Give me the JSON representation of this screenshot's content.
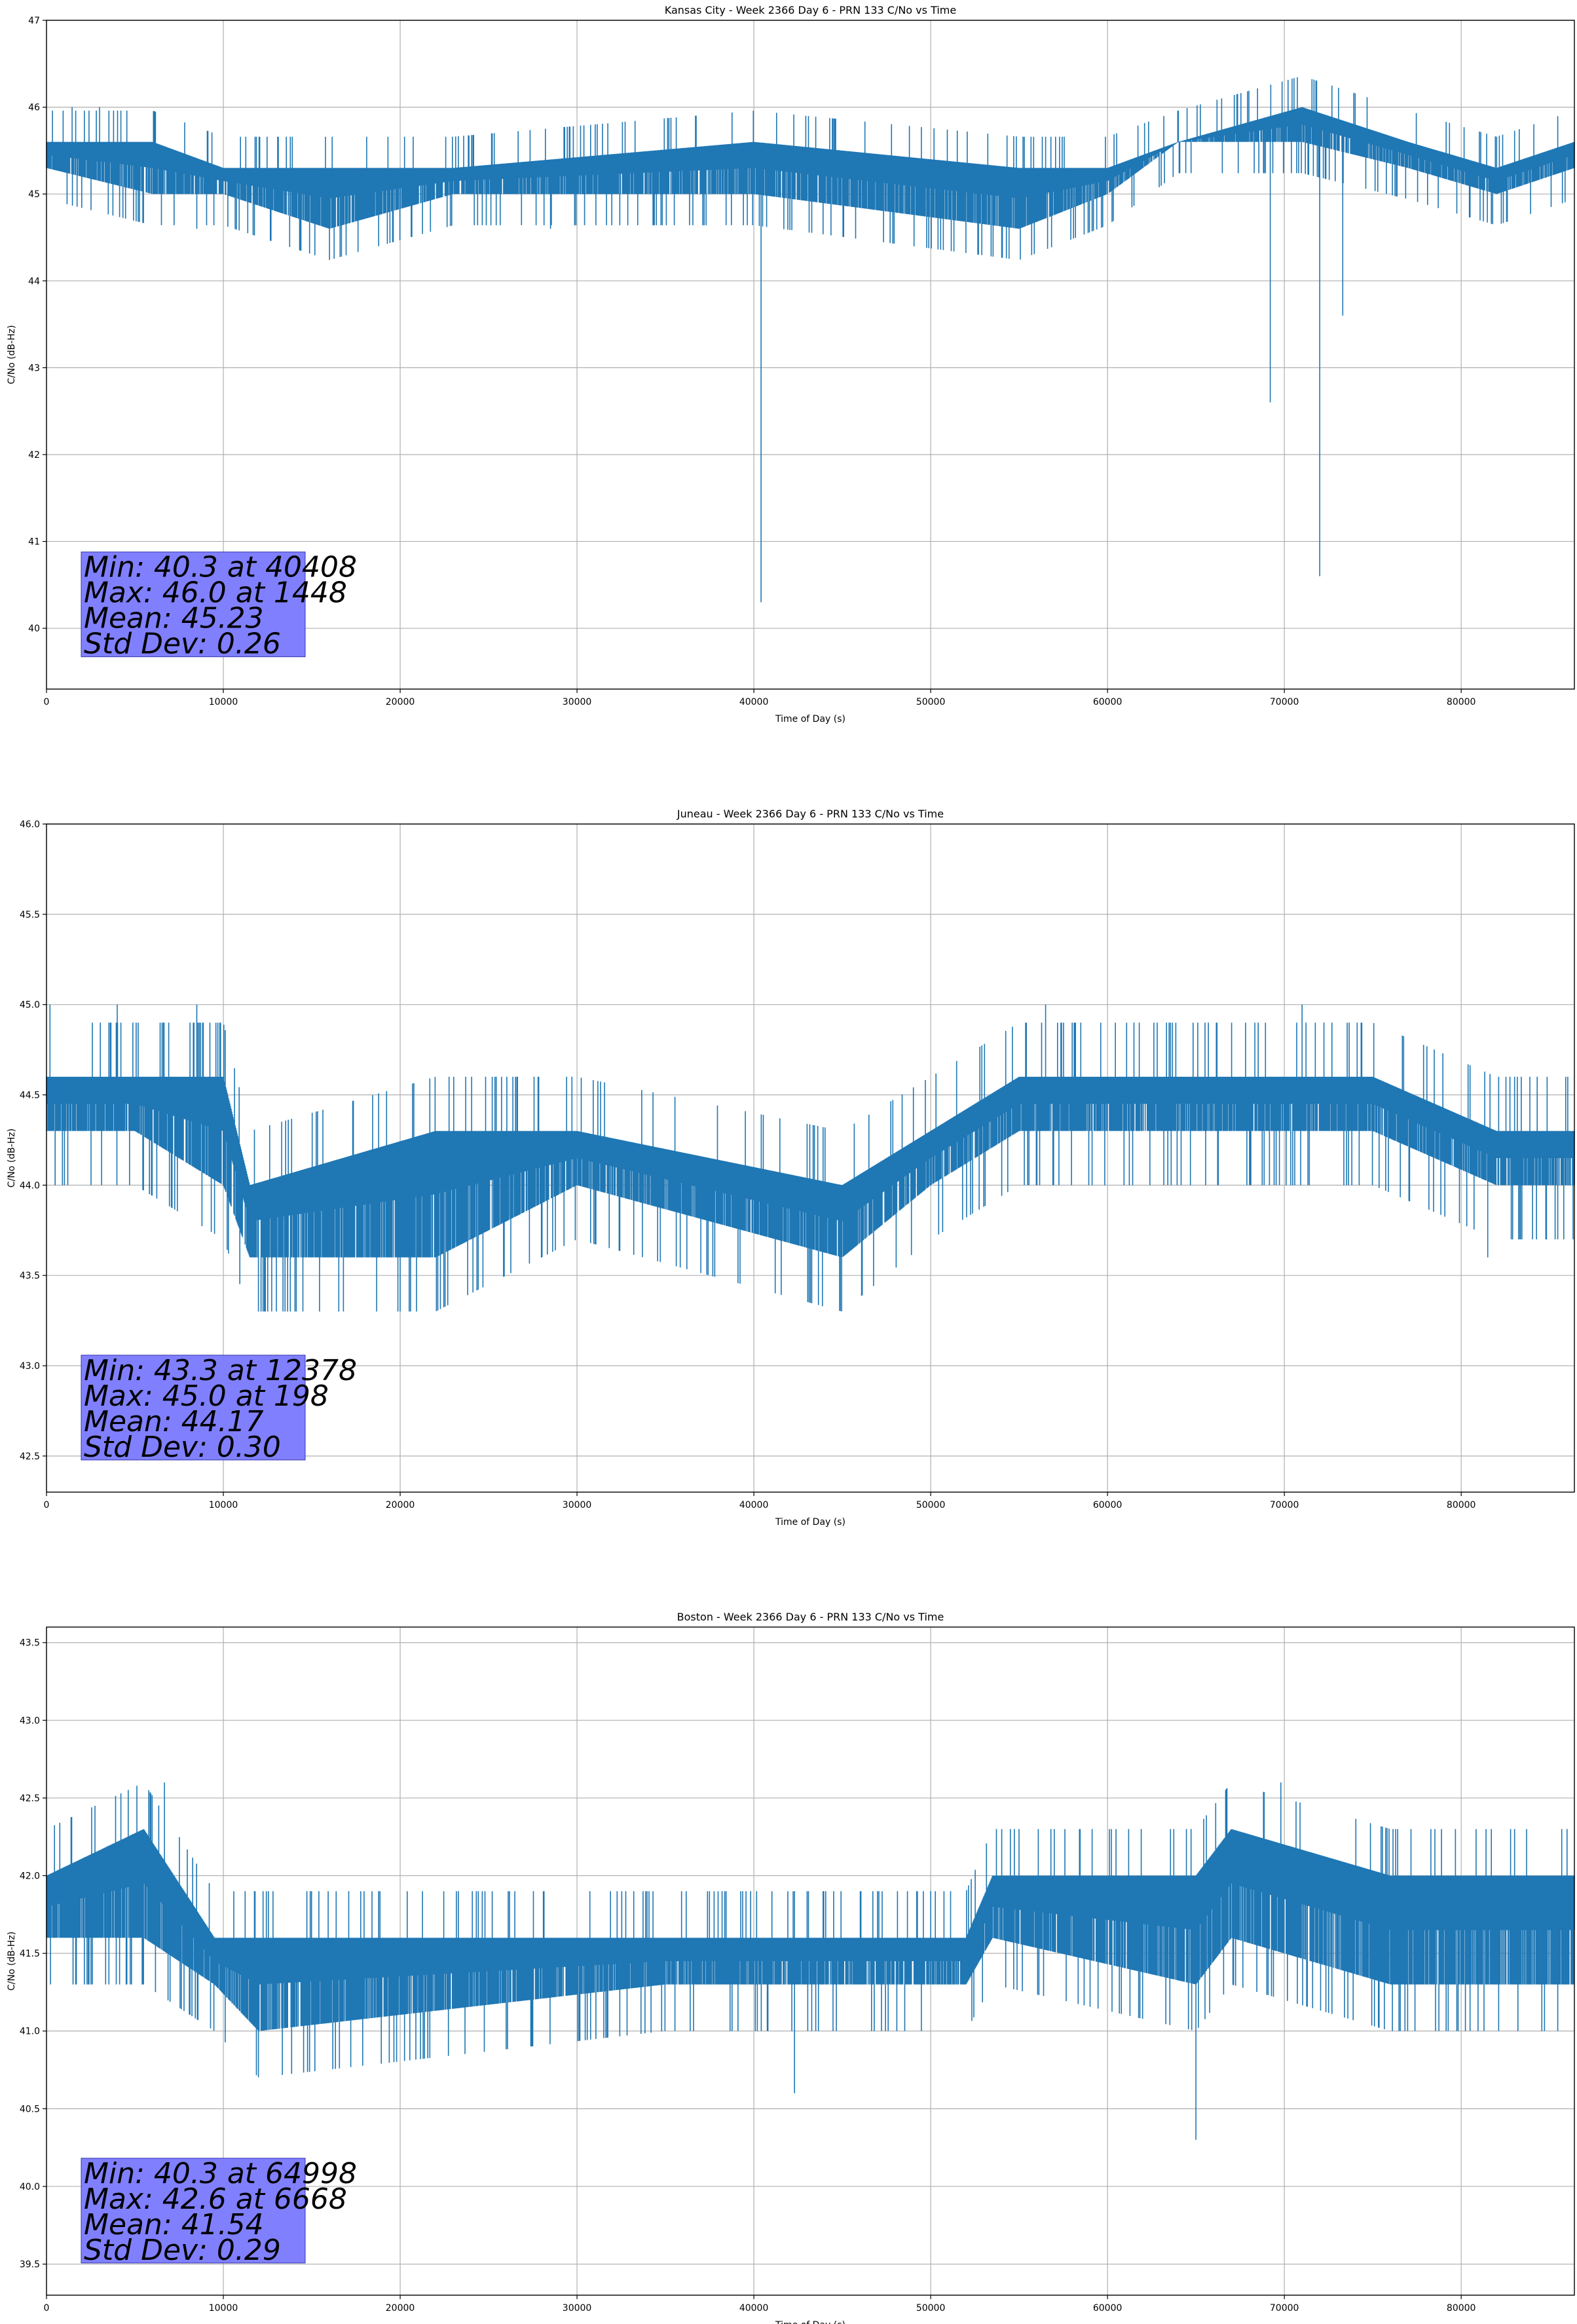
{
  "chart_data": [
    {
      "type": "line",
      "title": "Kansas City - Week 2366 Day 6 - PRN 133 C/No vs Time",
      "xlabel": "Time of Day (s)",
      "ylabel": "C/No (dB-Hz)",
      "xlim": [
        0,
        86400
      ],
      "ylim": [
        39.3,
        47
      ],
      "xticks": [
        0,
        10000,
        20000,
        30000,
        40000,
        50000,
        60000,
        70000,
        80000
      ],
      "yticks": [
        40,
        41,
        42,
        43,
        44,
        45,
        46,
        47
      ],
      "ytick_labels": [
        "40",
        "41",
        "42",
        "43",
        "44",
        "45",
        "46",
        "47"
      ],
      "grid": true,
      "series_color": "#1f77b4",
      "band_profile": {
        "x": [
          0,
          6000,
          10000,
          16000,
          23000,
          40000,
          55000,
          60000,
          64000,
          71000,
          77000,
          82000,
          86400
        ],
        "low": [
          45.3,
          45.0,
          45.0,
          44.6,
          45.0,
          45.0,
          44.6,
          45.0,
          45.6,
          45.6,
          45.3,
          45.0,
          45.3
        ],
        "high": [
          45.6,
          45.6,
          45.3,
          45.3,
          45.3,
          45.6,
          45.3,
          45.3,
          45.6,
          46.0,
          45.6,
          45.3,
          45.6
        ]
      },
      "spikes": [
        {
          "x": 40408,
          "y": 40.3
        },
        {
          "x": 69200,
          "y": 42.6
        },
        {
          "x": 72000,
          "y": 40.6
        },
        {
          "x": 73300,
          "y": 43.6
        },
        {
          "x": 1448,
          "y": 46.0
        },
        {
          "x": 3000,
          "y": 46.0
        },
        {
          "x": 8500,
          "y": 44.6
        },
        {
          "x": 28500,
          "y": 44.6
        }
      ],
      "stats": [
        "Min: 40.3 at 40408",
        "Max: 46.0 at 1448",
        "Mean: 45.23",
        "Std Dev: 0.26"
      ]
    },
    {
      "type": "line",
      "title": "Juneau - Week 2366 Day 6 - PRN 133 C/No vs Time",
      "xlabel": "Time of Day (s)",
      "ylabel": "C/No (dB-Hz)",
      "xlim": [
        0,
        86400
      ],
      "ylim": [
        42.3,
        46
      ],
      "xticks": [
        0,
        10000,
        20000,
        30000,
        40000,
        50000,
        60000,
        70000,
        80000
      ],
      "yticks": [
        42.5,
        43.0,
        43.5,
        44.0,
        44.5,
        45.0,
        45.5,
        46.0
      ],
      "ytick_labels": [
        "42.5",
        "43.0",
        "43.5",
        "44.0",
        "44.5",
        "45.0",
        "45.5",
        "46.0"
      ],
      "grid": true,
      "series_color": "#1f77b4",
      "band_profile": {
        "x": [
          0,
          5000,
          10000,
          11500,
          22000,
          30000,
          45000,
          50000,
          55000,
          75000,
          82000,
          86400
        ],
        "low": [
          44.3,
          44.3,
          44.0,
          43.6,
          43.6,
          44.0,
          43.6,
          44.0,
          44.3,
          44.3,
          44.0,
          44.0
        ],
        "high": [
          44.6,
          44.6,
          44.6,
          44.0,
          44.3,
          44.3,
          44.0,
          44.3,
          44.6,
          44.6,
          44.3,
          44.3
        ]
      },
      "spikes": [
        {
          "x": 198,
          "y": 45.0
        },
        {
          "x": 4000,
          "y": 45.0
        },
        {
          "x": 8500,
          "y": 45.0
        },
        {
          "x": 12378,
          "y": 43.3
        },
        {
          "x": 14500,
          "y": 43.3
        },
        {
          "x": 20000,
          "y": 43.3
        },
        {
          "x": 56500,
          "y": 45.0
        },
        {
          "x": 71000,
          "y": 45.0
        },
        {
          "x": 81500,
          "y": 43.6
        }
      ],
      "stats": [
        "Min: 43.3 at 12378",
        "Max: 45.0 at 198",
        "Mean: 44.17",
        "Std Dev: 0.30"
      ]
    },
    {
      "type": "line",
      "title": "Boston - Week 2366 Day 6 - PRN 133 C/No vs Time",
      "xlabel": "Time of Day (s)",
      "ylabel": "C/No (dB-Hz)",
      "xlim": [
        0,
        86400
      ],
      "ylim": [
        39.3,
        43.6
      ],
      "xticks": [
        0,
        10000,
        20000,
        30000,
        40000,
        50000,
        60000,
        70000,
        80000
      ],
      "yticks": [
        39.5,
        40.0,
        40.5,
        41.0,
        41.5,
        42.0,
        42.5,
        43.0,
        43.5
      ],
      "ytick_labels": [
        "39.5",
        "40.0",
        "40.5",
        "41.0",
        "41.5",
        "42.0",
        "42.5",
        "43.0",
        "43.5"
      ],
      "grid": true,
      "series_color": "#1f77b4",
      "band_profile": {
        "x": [
          0,
          5500,
          9500,
          12000,
          35000,
          52000,
          53500,
          65000,
          67000,
          76000,
          86400
        ],
        "low": [
          41.6,
          41.6,
          41.3,
          41.0,
          41.3,
          41.3,
          41.6,
          41.3,
          41.6,
          41.3,
          41.3
        ],
        "high": [
          42.0,
          42.3,
          41.6,
          41.6,
          41.6,
          41.6,
          42.0,
          42.0,
          42.3,
          42.0,
          42.0
        ]
      },
      "spikes": [
        {
          "x": 6668,
          "y": 42.6
        },
        {
          "x": 69800,
          "y": 42.6
        },
        {
          "x": 42300,
          "y": 40.6
        },
        {
          "x": 64998,
          "y": 40.3
        },
        {
          "x": 1500,
          "y": 41.3
        },
        {
          "x": 80500,
          "y": 41.0
        }
      ],
      "stats": [
        "Min: 40.3 at 64998",
        "Max: 42.6 at 6668",
        "Mean: 41.54",
        "Std Dev: 0.29"
      ]
    }
  ]
}
